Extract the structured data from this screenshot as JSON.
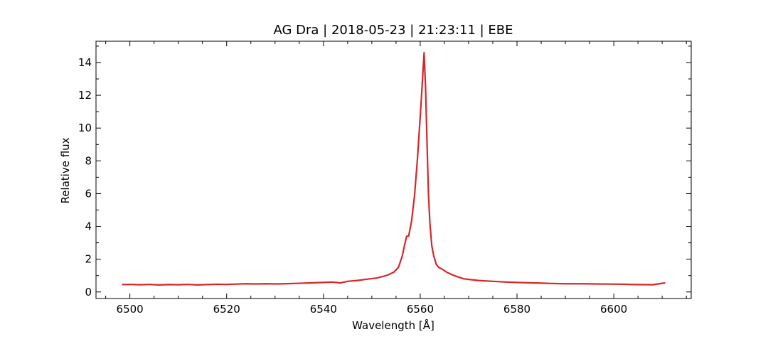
{
  "chart_data": {
    "type": "line",
    "title": "AG Dra | 2018-05-23 | 21:23:11 | EBE",
    "xlabel": "Wavelength [Å]",
    "ylabel": "Relative flux",
    "xlim": [
      6493,
      6616
    ],
    "ylim": [
      -0.4,
      15.3
    ],
    "xticks": [
      6500,
      6520,
      6540,
      6560,
      6580,
      6600
    ],
    "yticks": [
      0,
      2,
      4,
      6,
      8,
      10,
      12,
      14
    ],
    "x_minor_step": 5,
    "y_minor_step": 1,
    "grid": false,
    "legend": "none",
    "colors": {
      "line": "#d62728",
      "axes": "#000000",
      "background": "#ffffff"
    },
    "series": [
      {
        "x": [
          6498.5,
          6500,
          6502,
          6504,
          6506,
          6508,
          6510,
          6512,
          6514,
          6516,
          6518,
          6520,
          6522,
          6524,
          6526,
          6528,
          6530,
          6532,
          6534,
          6536,
          6538,
          6540,
          6542,
          6543.5,
          6545,
          6547,
          6549,
          6551,
          6553,
          6554.5,
          6555.5,
          6556.3,
          6556.8,
          6557.2,
          6557.6,
          6558.2,
          6558.8,
          6559.4,
          6559.8,
          6560.2,
          6560.5,
          6560.8,
          6561.1,
          6561.4,
          6561.7,
          6562,
          6562.4,
          6562.8,
          6563.3,
          6563.8,
          6564.5,
          6565.5,
          6567,
          6569,
          6572,
          6575,
          6578,
          6581,
          6584,
          6587,
          6590,
          6593,
          6596,
          6599,
          6602,
          6605,
          6608,
          6610.5
        ],
        "y": [
          0.45,
          0.46,
          0.44,
          0.46,
          0.43,
          0.45,
          0.44,
          0.46,
          0.43,
          0.45,
          0.47,
          0.46,
          0.48,
          0.5,
          0.49,
          0.5,
          0.49,
          0.5,
          0.52,
          0.54,
          0.56,
          0.58,
          0.6,
          0.55,
          0.65,
          0.7,
          0.78,
          0.85,
          1.0,
          1.2,
          1.5,
          2.2,
          2.9,
          3.4,
          3.4,
          4.3,
          5.8,
          8.0,
          9.8,
          11.6,
          13.1,
          14.6,
          12.5,
          9.2,
          6.0,
          4.2,
          2.8,
          2.2,
          1.7,
          1.5,
          1.4,
          1.2,
          1.0,
          0.8,
          0.7,
          0.65,
          0.6,
          0.57,
          0.55,
          0.52,
          0.5,
          0.5,
          0.49,
          0.48,
          0.47,
          0.45,
          0.44,
          0.55
        ]
      }
    ]
  }
}
